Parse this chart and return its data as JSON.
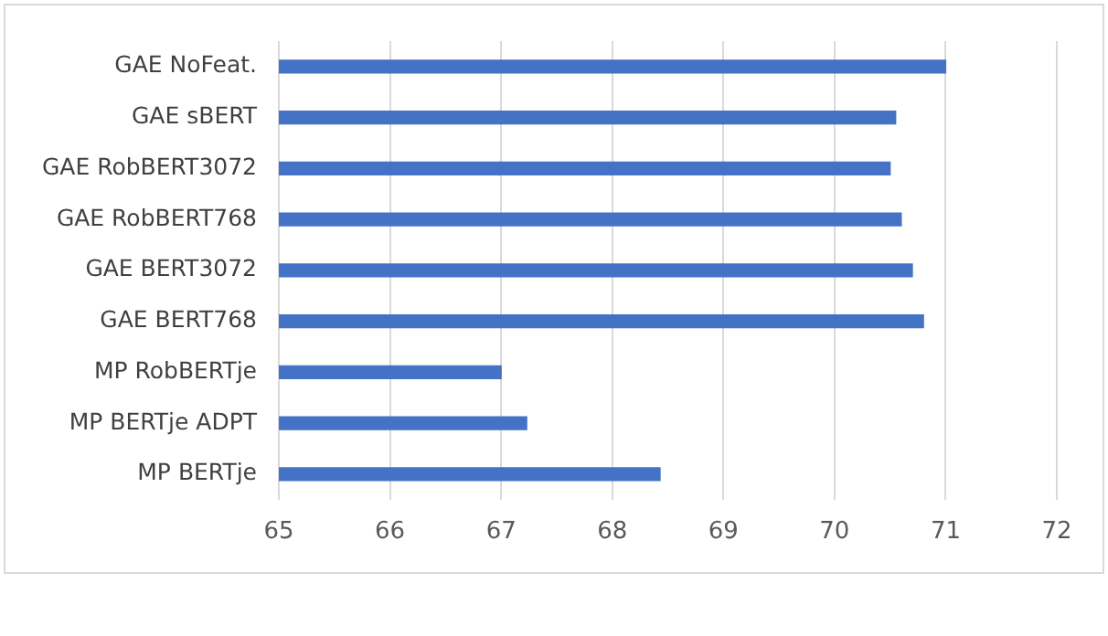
{
  "chart_data": {
    "type": "bar",
    "orientation": "horizontal",
    "categories": [
      "GAE NoFeat.",
      "GAE sBERT",
      "GAE RobBERT3072",
      "GAE RobBERT768",
      "GAE BERT3072",
      "GAE BERT768",
      "MP RobBERTje",
      "MP BERTje ADPT",
      "MP BERTje"
    ],
    "values": [
      71.0,
      70.55,
      70.5,
      70.6,
      70.7,
      70.8,
      67.0,
      67.23,
      68.43
    ],
    "color": "#4472c4",
    "xlim": [
      65,
      72
    ],
    "xticks": [
      65,
      66,
      67,
      68,
      69,
      70,
      71,
      72
    ],
    "grid": "x",
    "legend": false
  }
}
